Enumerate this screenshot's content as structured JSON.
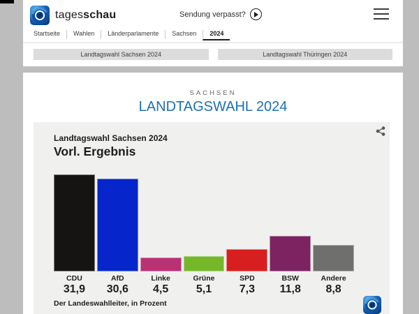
{
  "header": {
    "brand_regular": "tages",
    "brand_bold": "schau",
    "sendung_verpasst": "Sendung verpasst?"
  },
  "breadcrumb": {
    "items": [
      {
        "label": "Startseite",
        "active": false
      },
      {
        "label": "Wahlen",
        "active": false
      },
      {
        "label": "Länderparlamente",
        "active": false
      },
      {
        "label": "Sachsen",
        "active": false
      },
      {
        "label": "2024",
        "active": true
      }
    ]
  },
  "tabs": [
    {
      "label": "Landtagswahl Sachsen 2024"
    },
    {
      "label": "Landtagswahl Thüringen 2024"
    }
  ],
  "page": {
    "eyebrow": "SACHSEN",
    "title": "LANDTAGSWAHL 2024",
    "title_color": "#1d6fb4"
  },
  "chart_data": {
    "type": "bar",
    "title": "Landtagswahl Sachsen 2024",
    "subtitle": "Vorl. Ergebnis",
    "categories": [
      "CDU",
      "AfD",
      "Linke",
      "Grüne",
      "SPD",
      "BSW",
      "Andere"
    ],
    "values": [
      31.9,
      30.6,
      4.5,
      5.1,
      7.3,
      11.8,
      8.8
    ],
    "value_labels": [
      "31,9",
      "30,6",
      "4,5",
      "5,1",
      "7,3",
      "11,8",
      "8,8"
    ],
    "colors": [
      "#161413",
      "#0626cb",
      "#b93273",
      "#76b72a",
      "#d71f1f",
      "#7e2361",
      "#6f6f6e"
    ],
    "ylabel": "Prozent",
    "ylim": [
      0,
      32
    ],
    "grid": false,
    "legend": "none",
    "source": "Der Landeswahlleiter, in Prozent"
  }
}
